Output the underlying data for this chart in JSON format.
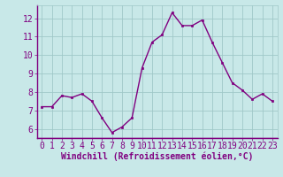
{
  "x": [
    0,
    1,
    2,
    3,
    4,
    5,
    6,
    7,
    8,
    9,
    10,
    11,
    12,
    13,
    14,
    15,
    16,
    17,
    18,
    19,
    20,
    21,
    22,
    23
  ],
  "y": [
    7.2,
    7.2,
    7.8,
    7.7,
    7.9,
    7.5,
    6.6,
    5.8,
    6.1,
    6.6,
    9.3,
    10.7,
    11.1,
    12.3,
    11.6,
    11.6,
    11.9,
    10.7,
    9.6,
    8.5,
    8.1,
    7.6,
    7.9,
    7.5
  ],
  "line_color": "#800080",
  "marker": "s",
  "markersize": 2,
  "linewidth": 1.0,
  "bg_color": "#c8e8e8",
  "grid_color": "#a0c8c8",
  "axis_label_color": "#800080",
  "tick_color": "#800080",
  "xlabel": "Windchill (Refroidissement éolien,°C)",
  "xlim": [
    -0.5,
    23.5
  ],
  "ylim": [
    5.5,
    12.7
  ],
  "yticks": [
    6,
    7,
    8,
    9,
    10,
    11,
    12
  ],
  "xticks": [
    0,
    1,
    2,
    3,
    4,
    5,
    6,
    7,
    8,
    9,
    10,
    11,
    12,
    13,
    14,
    15,
    16,
    17,
    18,
    19,
    20,
    21,
    22,
    23
  ],
  "spine_color": "#800080",
  "tick_fontsize": 7,
  "xlabel_fontsize": 7
}
